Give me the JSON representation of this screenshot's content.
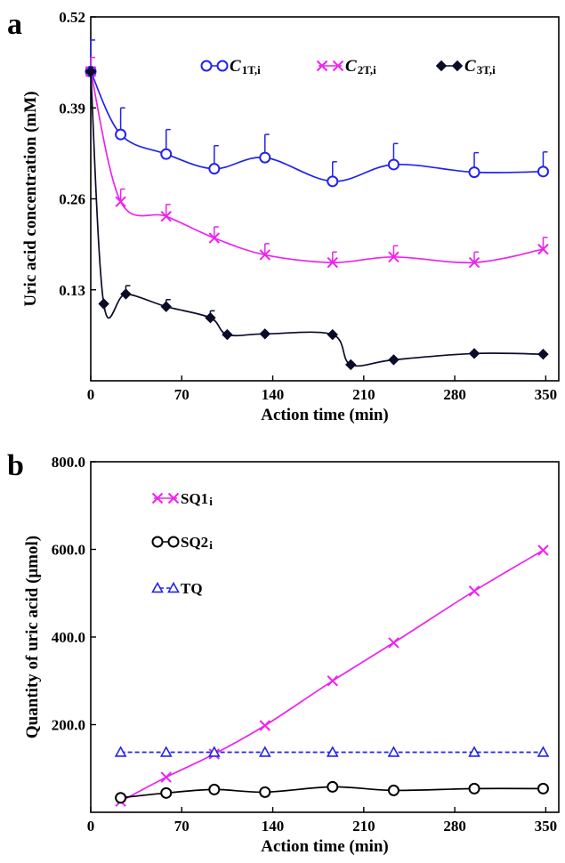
{
  "chart_data": [
    {
      "panel_label": "a",
      "type": "line",
      "xlabel": "Action time (min)",
      "ylabel": "Uric acid concentration (mM)",
      "xlim": [
        0,
        360
      ],
      "ylim": [
        0,
        0.52
      ],
      "xticks": [
        "0",
        "70",
        "140",
        "210",
        "280",
        "350"
      ],
      "yticks": [
        "0.13",
        "0.26",
        "0.39",
        "0.52"
      ],
      "legend_position": "top",
      "series": [
        {
          "name": "C",
          "subscript": "1T,i",
          "color": "#2222ee",
          "marker": "circle",
          "x": [
            0,
            23,
            58,
            95,
            134,
            186,
            233,
            295,
            348
          ],
          "y": [
            0.442,
            0.352,
            0.324,
            0.303,
            0.319,
            0.285,
            0.309,
            0.298,
            0.299
          ],
          "error": [
            0.045,
            0.038,
            0.035,
            0.033,
            0.033,
            0.028,
            0.03,
            0.028,
            0.028
          ]
        },
        {
          "name": "C",
          "subscript": "2T,i",
          "color": "#ee22ee",
          "marker": "x",
          "x": [
            0,
            23,
            58,
            95,
            134,
            186,
            233,
            295,
            348
          ],
          "y": [
            0.442,
            0.256,
            0.235,
            0.204,
            0.18,
            0.169,
            0.177,
            0.169,
            0.188
          ],
          "error": [
            0.02,
            0.018,
            0.017,
            0.016,
            0.016,
            0.015,
            0.016,
            0.015,
            0.017
          ]
        },
        {
          "name": "C",
          "subscript": "3T,i",
          "color": "#0b0b2a",
          "marker": "diamond",
          "x": [
            0,
            10,
            27,
            58,
            92,
            105,
            134,
            186,
            200,
            233,
            295,
            348
          ],
          "y": [
            0.442,
            0.11,
            0.124,
            0.106,
            0.09,
            0.066,
            0.067,
            0.066,
            0.023,
            0.03,
            0.039,
            0.038
          ],
          "error": [
            0,
            0,
            0.012,
            0.01,
            0.01,
            0,
            0,
            0,
            0,
            0,
            0,
            0
          ]
        }
      ]
    },
    {
      "panel_label": "b",
      "type": "line",
      "xlabel": "Action time (min)",
      "ylabel": "Quantity of uric acid (μmol)",
      "xlim": [
        0,
        360
      ],
      "ylim": [
        0,
        800
      ],
      "xticks": [
        "0",
        "70",
        "140",
        "210",
        "280",
        "350"
      ],
      "yticks": [
        "200.0",
        "400.0",
        "600.0",
        "800.0"
      ],
      "legend_position": "top-left",
      "series": [
        {
          "name": "SQ1",
          "subscript": "i",
          "color": "#ee22ee",
          "marker": "x",
          "line": "solid",
          "x": [
            23,
            58,
            95,
            134,
            186,
            233,
            295,
            348
          ],
          "y": [
            25,
            80,
            133,
            198,
            300,
            387,
            505,
            598
          ]
        },
        {
          "name": "SQ2",
          "subscript": "i",
          "color": "#000000",
          "marker": "circle",
          "line": "solid",
          "x": [
            23,
            58,
            95,
            134,
            186,
            233,
            295,
            348
          ],
          "y": [
            33,
            44,
            52,
            46,
            58,
            50,
            54,
            54
          ]
        },
        {
          "name": "TQ",
          "subscript": "",
          "color": "#2222ee",
          "marker": "triangle",
          "line": "dashed",
          "x": [
            23,
            58,
            95,
            134,
            186,
            233,
            295,
            348
          ],
          "y": [
            137,
            137,
            137,
            137,
            137,
            137,
            137,
            137
          ]
        }
      ]
    }
  ]
}
